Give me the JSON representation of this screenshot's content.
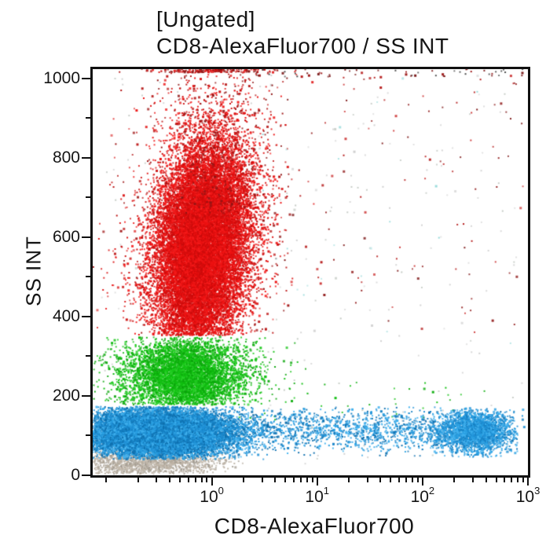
{
  "chart_data": {
    "type": "scatter",
    "title": "[Ungated]",
    "subtitle": "CD8-AlexaFluor700 / SS INT",
    "xlabel": "CD8-AlexaFluor700",
    "ylabel": "SS INT",
    "x_scale": "log10",
    "x_domain_log10": [
      -1.13,
      3
    ],
    "y_domain": [
      0,
      1023
    ],
    "grid": false,
    "legend": "none",
    "axis_color": "#101010",
    "text_color": "#151515",
    "x_major_ticks": [
      {
        "base": "10",
        "exp": "0",
        "log10": 0
      },
      {
        "base": "10",
        "exp": "1",
        "log10": 1
      },
      {
        "base": "10",
        "exp": "2",
        "log10": 2
      },
      {
        "base": "10",
        "exp": "3",
        "log10": 3
      }
    ],
    "x_minor_decades": [
      -1,
      0,
      1,
      2
    ],
    "y_major_ticks": [
      {
        "label": "0",
        "value": 0
      },
      {
        "label": "200",
        "value": 200
      },
      {
        "label": "400",
        "value": 400
      },
      {
        "label": "600",
        "value": 600
      },
      {
        "label": "800",
        "value": 800
      },
      {
        "label": "1000",
        "value": 1000
      }
    ],
    "y_minor_values": [
      100,
      300,
      500,
      700,
      900
    ],
    "seed": 42421,
    "populations": [
      {
        "name": "scattered-gray-specks",
        "colors": [
          "#cfcfcf",
          "#dcdcdc",
          "#c4cac4"
        ],
        "count": 240,
        "big": 0.1,
        "x": {
          "dist": "uniform",
          "a": -1.05,
          "b": 2.97
        },
        "y": {
          "dist": "uniform",
          "a": 15,
          "b": 1010
        }
      },
      {
        "name": "debris-gray",
        "colors": [
          "#b6ac9e",
          "#c4bcb1",
          "#a29c92",
          "#bfb4a6"
        ],
        "count": 1300,
        "big": 0.1,
        "x": {
          "dist": "normal",
          "a": -0.6,
          "b": 0.34,
          "min": -1.12,
          "max": 0.35
        },
        "y": {
          "dist": "normal",
          "a": 32,
          "b": 17,
          "min": 3,
          "max": 62
        }
      },
      {
        "name": "red-halo",
        "colors": [
          "#dc1f1f",
          "#bb1111",
          "#e04848",
          "#9e1414"
        ],
        "count": 950,
        "big": 0.2,
        "tilt": 0.05,
        "x": {
          "dist": "normal",
          "a": -0.09,
          "b": 0.46,
          "min": -1.12,
          "max": 0.8
        },
        "y": {
          "dist": "normal",
          "a": 580,
          "b": 170,
          "min": 355,
          "max": 1022
        }
      },
      {
        "name": "red-core",
        "colors": [
          "#ec1111",
          "#f51b1b",
          "#d90d0d",
          "#ca0b0b"
        ],
        "count": 19500,
        "big": 0.15,
        "tilt": 0.05,
        "x": {
          "dist": "normal",
          "a": -0.09,
          "b": 0.22,
          "min": -1.12,
          "max": 0.65
        },
        "y": {
          "dist": "normal",
          "a": 575,
          "b": 135,
          "min": 352,
          "max": 1023
        }
      },
      {
        "name": "red-top-spray",
        "colors": [
          "#e01515",
          "#b31212",
          "#8f1515"
        ],
        "count": 650,
        "big": 0.2,
        "x": {
          "dist": "normal",
          "a": -0.02,
          "b": 0.3,
          "min": -1.1,
          "max": 1.4
        },
        "y": {
          "dist": "uniform",
          "a": 660,
          "b": 1150,
          "min": 355,
          "max": 1023,
          "mode": "clip",
          "band": 8
        }
      },
      {
        "name": "red-sparse-right",
        "colors": [
          "#b51a1a",
          "#932020",
          "#cf4040",
          "#7d1616"
        ],
        "count": 130,
        "big": 0.25,
        "x": {
          "dist": "uniform",
          "a": 0.35,
          "b": 2.96
        },
        "y": {
          "dist": "uniform",
          "a": 360,
          "b": 1015
        }
      },
      {
        "name": "teal-sparse",
        "colors": [
          "#8fd8d8",
          "#b7e5e5"
        ],
        "count": 22,
        "big": 0.2,
        "x": {
          "dist": "uniform",
          "a": 0.4,
          "b": 2.9
        },
        "y": {
          "dist": "uniform",
          "a": 330,
          "b": 1000
        }
      },
      {
        "name": "top-edge-sparse",
        "colors": [
          "#991111",
          "#4a4a4a",
          "#7a1a1a"
        ],
        "count": 60,
        "big": 0.15,
        "x": {
          "dist": "uniform",
          "a": 0.25,
          "b": 2.96
        },
        "y": {
          "dist": "uniform",
          "a": 1004,
          "b": 1023
        }
      },
      {
        "name": "green-halo",
        "colors": [
          "#16c316",
          "#12a812"
        ],
        "count": 700,
        "big": 0.15,
        "x": {
          "dist": "normal",
          "a": -0.25,
          "b": 0.45,
          "min": -1.12,
          "max": 0.9
        },
        "y": {
          "dist": "normal",
          "a": 255,
          "b": 62,
          "min": 178,
          "max": 350
        }
      },
      {
        "name": "green-core",
        "colors": [
          "#12c412",
          "#0fb70f",
          "#27d027",
          "#0ba50b"
        ],
        "count": 4800,
        "big": 0.15,
        "x": {
          "dist": "normal",
          "a": -0.25,
          "b": 0.27,
          "min": -1.12,
          "max": 0.55
        },
        "y": {
          "dist": "normal",
          "a": 252,
          "b": 46,
          "min": 178,
          "max": 348
        }
      },
      {
        "name": "green-sparse-right",
        "colors": [
          "#14c014",
          "#0fae0f"
        ],
        "count": 40,
        "big": 0.2,
        "x": {
          "dist": "uniform",
          "a": 0.1,
          "b": 2.92
        },
        "y": {
          "dist": "uniform",
          "a": 140,
          "b": 235
        }
      },
      {
        "name": "blue-band",
        "colors": [
          "#2aa0e2",
          "#1f90d6",
          "#157fc2",
          "#41b1ee",
          "#0e6fae"
        ],
        "count": 2700,
        "big": 0.15,
        "x": {
          "dist": "uniform",
          "a": -1.11,
          "b": 2.9
        },
        "y": {
          "dist": "normal",
          "a": 113,
          "b": 27,
          "min": 48,
          "max": 172
        }
      },
      {
        "name": "blue-left-cluster",
        "colors": [
          "#2aa0e2",
          "#1f90d6",
          "#157fc2",
          "#41b1ee",
          "#0e6fae"
        ],
        "count": 14500,
        "big": 0.12,
        "x": {
          "dist": "normal",
          "a": -0.5,
          "b": 0.34,
          "min": -1.13,
          "max": 0.55
        },
        "y": {
          "dist": "normal",
          "a": 106,
          "b": 30,
          "min": 40,
          "max": 173
        }
      },
      {
        "name": "blue-right-cluster",
        "colors": [
          "#2aa0e2",
          "#1f90d6",
          "#157fc2",
          "#41b1ee"
        ],
        "count": 2100,
        "big": 0.12,
        "x": {
          "dist": "normal",
          "a": 2.48,
          "b": 0.16,
          "min": 1.85,
          "max": 2.97
        },
        "y": {
          "dist": "normal",
          "a": 110,
          "b": 26,
          "min": 45,
          "max": 168
        }
      }
    ]
  }
}
